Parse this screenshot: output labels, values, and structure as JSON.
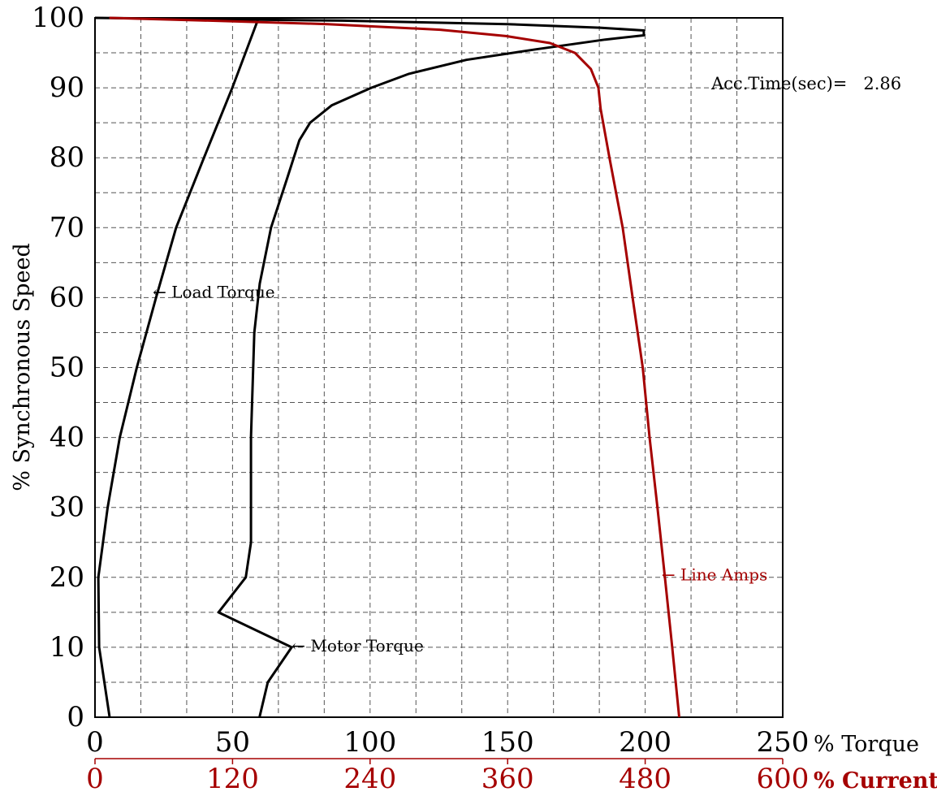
{
  "chart_data": {
    "type": "line",
    "ylabel": "% Synchronous Speed",
    "torque_axis_label": "% Torque",
    "current_axis_label": "% Current",
    "ylim": [
      0,
      100
    ],
    "torque_xlim": [
      0,
      250
    ],
    "current_xlim": [
      0,
      600
    ],
    "yticks": [
      "0",
      "10",
      "20",
      "30",
      "40",
      "50",
      "60",
      "70",
      "80",
      "90",
      "100"
    ],
    "torque_ticks": [
      "0",
      "50",
      "100",
      "150",
      "200",
      "250"
    ],
    "current_ticks": [
      "0",
      "120",
      "240",
      "360",
      "480",
      "600"
    ],
    "grid": true,
    "annotation": "Acc.Time(sec)=   2.86",
    "colors": {
      "torque": "#000000",
      "current": "#a50000"
    },
    "series": [
      {
        "name": "Load Torque",
        "axis": "torque",
        "label": "← Load Torque",
        "label_at": [
          21,
          60.8
        ],
        "points": [
          [
            5.3,
            0
          ],
          [
            1.5,
            10
          ],
          [
            1.2,
            20
          ],
          [
            4.6,
            30
          ],
          [
            9,
            40
          ],
          [
            15.2,
            50
          ],
          [
            22.2,
            60
          ],
          [
            29.5,
            70
          ],
          [
            39.6,
            80
          ],
          [
            49.9,
            90
          ],
          [
            59.4,
            99.9
          ]
        ]
      },
      {
        "name": "Motor Torque",
        "axis": "torque",
        "label": "← Motor Torque",
        "label_at": [
          71.5,
          10.2
        ],
        "points": [
          [
            59.8,
            0
          ],
          [
            62.8,
            5
          ],
          [
            71.5,
            10
          ],
          [
            44.9,
            15
          ],
          [
            54.8,
            20
          ],
          [
            56.7,
            25
          ],
          [
            56.7,
            30
          ],
          [
            56.7,
            40
          ],
          [
            57.9,
            55
          ],
          [
            59.9,
            62
          ],
          [
            64,
            70
          ],
          [
            69.8,
            77
          ],
          [
            74.3,
            82.5
          ],
          [
            78.2,
            85
          ],
          [
            86.1,
            87.5
          ],
          [
            100.4,
            90
          ],
          [
            114.1,
            92
          ],
          [
            135,
            94
          ],
          [
            160.4,
            95.5
          ],
          [
            185.5,
            96.9
          ],
          [
            199.5,
            97.5
          ],
          [
            199.5,
            98.2
          ],
          [
            183.5,
            98.6
          ],
          [
            150,
            99.1
          ],
          [
            90,
            99.6
          ],
          [
            0,
            100
          ]
        ]
      },
      {
        "name": "Line Amps",
        "axis": "current",
        "label": "← Line Amps",
        "label_at": [
          494.4,
          20.4
        ],
        "points": [
          [
            509.7,
            0
          ],
          [
            503.6,
            10
          ],
          [
            497.2,
            20
          ],
          [
            490.7,
            30
          ],
          [
            483.8,
            40
          ],
          [
            477.9,
            50
          ],
          [
            469,
            60
          ],
          [
            460.4,
            70
          ],
          [
            448.8,
            80
          ],
          [
            441.1,
            87
          ],
          [
            439.2,
            90
          ],
          [
            432.6,
            92.7
          ],
          [
            418.7,
            95
          ],
          [
            396.9,
            96.4
          ],
          [
            358.5,
            97.4
          ],
          [
            301.1,
            98.3
          ],
          [
            202.8,
            99.1
          ],
          [
            99.8,
            99.6
          ],
          [
            12.5,
            100
          ]
        ]
      }
    ]
  }
}
